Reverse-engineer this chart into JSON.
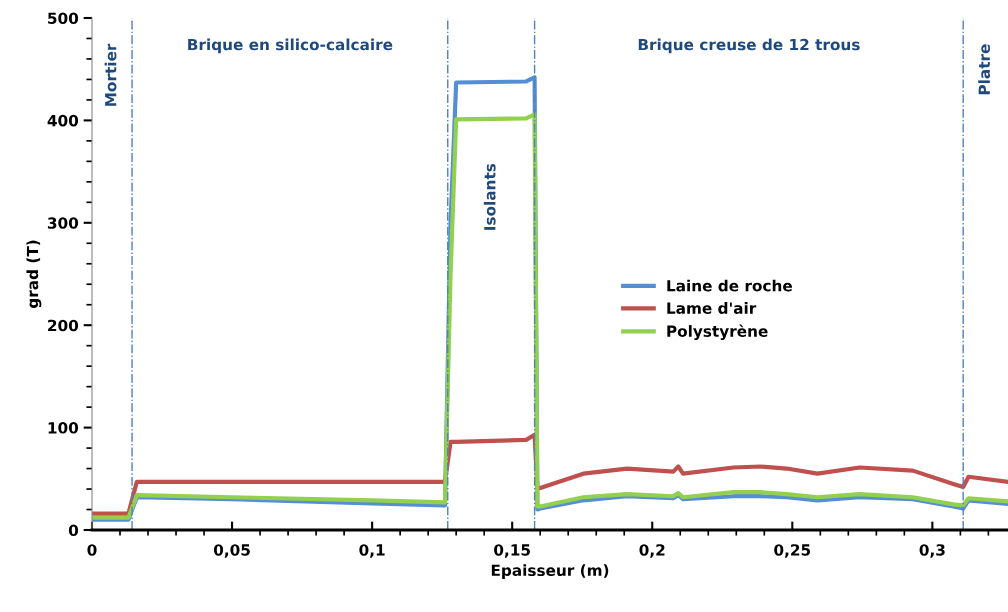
{
  "chart_data": {
    "type": "line",
    "xlabel": "Epaisseur (m)",
    "ylabel": "grad (T)",
    "xlim": [
      0,
      0.327
    ],
    "ylim": [
      0,
      500
    ],
    "xticks": [
      0,
      {
        "value": 0.01,
        "label": null
      },
      {
        "value": 0.02,
        "label": null
      },
      {
        "value": 0.03,
        "label": null
      },
      {
        "value": 0.04,
        "label": null
      },
      {
        "value": 0.05,
        "label": "0,05"
      },
      {
        "value": 0.06,
        "label": null
      },
      {
        "value": 0.07,
        "label": null
      },
      {
        "value": 0.08,
        "label": null
      },
      {
        "value": 0.09,
        "label": null
      },
      {
        "value": 0.1,
        "label": "0,1"
      },
      {
        "value": 0.11,
        "label": null
      },
      {
        "value": 0.12,
        "label": null
      },
      {
        "value": 0.13,
        "label": null
      },
      {
        "value": 0.14,
        "label": null
      },
      {
        "value": 0.15,
        "label": "0,15"
      },
      {
        "value": 0.16,
        "label": null
      },
      {
        "value": 0.17,
        "label": null
      },
      {
        "value": 0.18,
        "label": null
      },
      {
        "value": 0.19,
        "label": null
      },
      {
        "value": 0.2,
        "label": "0,2"
      },
      {
        "value": 0.21,
        "label": null
      },
      {
        "value": 0.22,
        "label": null
      },
      {
        "value": 0.23,
        "label": null
      },
      {
        "value": 0.24,
        "label": null
      },
      {
        "value": 0.25,
        "label": "0,25"
      },
      {
        "value": 0.26,
        "label": null
      },
      {
        "value": 0.27,
        "label": null
      },
      {
        "value": 0.28,
        "label": null
      },
      {
        "value": 0.29,
        "label": null
      },
      {
        "value": 0.3,
        "label": "0,3"
      },
      {
        "value": 0.31,
        "label": null
      },
      {
        "value": 0.32,
        "label": null
      }
    ],
    "yticks": [
      0,
      {
        "value": 20,
        "label": null
      },
      {
        "value": 40,
        "label": null
      },
      {
        "value": 60,
        "label": null
      },
      {
        "value": 80,
        "label": null
      },
      100,
      {
        "value": 120,
        "label": null
      },
      {
        "value": 140,
        "label": null
      },
      {
        "value": 160,
        "label": null
      },
      {
        "value": 180,
        "label": null
      },
      200,
      {
        "value": 220,
        "label": null
      },
      {
        "value": 240,
        "label": null
      },
      {
        "value": 260,
        "label": null
      },
      {
        "value": 280,
        "label": null
      },
      300,
      {
        "value": 320,
        "label": null
      },
      {
        "value": 340,
        "label": null
      },
      {
        "value": 360,
        "label": null
      },
      {
        "value": 380,
        "label": null
      },
      400,
      {
        "value": 420,
        "label": null
      },
      {
        "value": 440,
        "label": null
      },
      {
        "value": 460,
        "label": null
      },
      {
        "value": 480,
        "label": null
      },
      500
    ],
    "grid": false,
    "legend": "right",
    "marker": "none",
    "line_style": "solid",
    "x": [
      0,
      0.013,
      0.016,
      0.05,
      0.1,
      0.126,
      0.128,
      0.13,
      0.155,
      0.158,
      0.159,
      0.16,
      0.1754,
      0.191,
      0.2075,
      0.2093,
      0.211,
      0.229,
      0.2386,
      0.248,
      0.259,
      0.274,
      0.293,
      0.3075,
      0.311,
      0.3129,
      0.327
    ],
    "series": [
      {
        "name": "Laine de roche",
        "color": "#558ed5",
        "values": [
          10,
          10,
          32,
          30,
          26,
          24,
          300,
          437,
          438,
          442,
          20,
          21,
          29,
          33,
          31,
          34,
          30,
          33,
          33,
          32,
          29,
          32,
          30,
          23,
          21,
          29,
          25.5
        ]
      },
      {
        "name": "Lame d'air",
        "color": "#c0504d",
        "values": [
          16,
          16,
          47,
          47,
          47,
          47,
          86,
          86,
          88,
          93,
          41,
          41,
          55,
          60,
          57,
          62,
          55,
          61,
          62,
          60,
          55,
          61,
          58,
          45,
          42,
          52,
          47
        ]
      },
      {
        "name": "Polystyrène",
        "color": "#92d050",
        "values": [
          12,
          12,
          34,
          32,
          29,
          27,
          250,
          401,
          402,
          406,
          23,
          23,
          32,
          35,
          33,
          36,
          32,
          37,
          37,
          35,
          32,
          35,
          32,
          25,
          24,
          31,
          28
        ]
      }
    ],
    "ref_lines": [
      {
        "axis": "x",
        "value": 0.0143,
        "color": "#4f81bd",
        "line_style": "dotted"
      },
      {
        "axis": "x",
        "value": 0.127,
        "color": "#4f81bd",
        "line_style": "dotted"
      },
      {
        "axis": "x",
        "value": 0.158,
        "color": "#4f81bd",
        "line_style": "dotted"
      },
      {
        "axis": "x",
        "value": 0.311,
        "color": "#4f81bd",
        "line_style": "dotted"
      }
    ],
    "annotations": [
      "Mortier",
      "Brique en silico-calcaire",
      "Isolants",
      "Brique creuse de 12 trous",
      "Platre"
    ]
  }
}
